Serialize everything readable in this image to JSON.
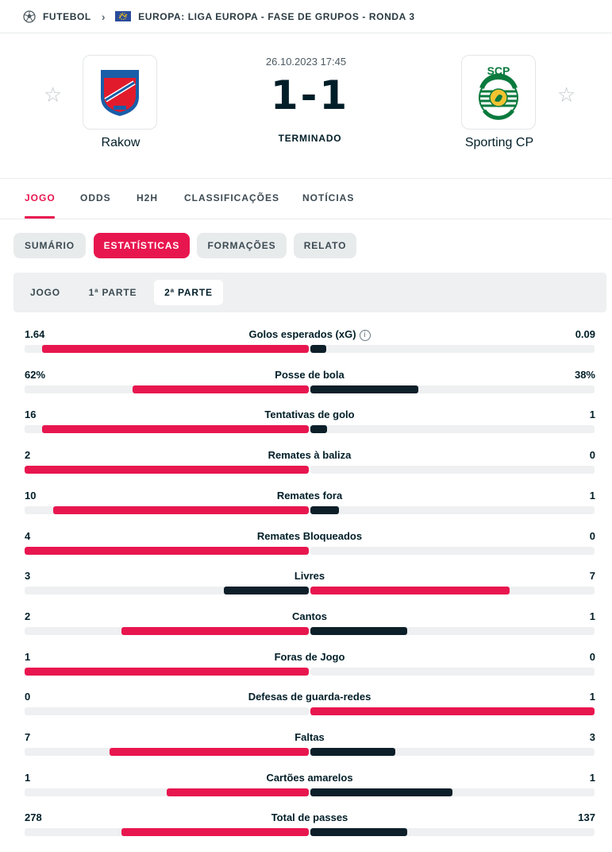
{
  "breadcrumb": {
    "sport": "FUTEBOL",
    "competition": "EUROPA: LIGA EUROPA - FASE DE GRUPOS - RONDA 3",
    "icons": [
      "soccer-ball-icon",
      "chevron-right-icon",
      "europe-flag-icon"
    ]
  },
  "match": {
    "datetime": "26.10.2023 17:45",
    "score": "1-1",
    "status": "TERMINADO",
    "home": {
      "name": "Rakow",
      "crest_text": "RKS RAKÓW",
      "crest_sub": "CZĘSTOCHOWA",
      "crest_year": "1921",
      "crest_colors": [
        "#1a5ea8",
        "#e21b2c"
      ]
    },
    "away": {
      "name": "Sporting CP",
      "crest_text": "SCP",
      "crest_sub": "SPORTING",
      "crest_sub2": "PORTUGAL",
      "crest_color": "#0a7a3d"
    }
  },
  "main_tabs": [
    "JOGO",
    "ODDS",
    "H2H",
    "CLASSIFICAÇÕES",
    "NOTÍCIAS"
  ],
  "sub_tabs": [
    "SUMÁRIO",
    "ESTATÍSTICAS",
    "FORMAÇÕES",
    "RELATO"
  ],
  "period_tabs": [
    "JOGO",
    "1ª PARTE",
    "2ª PARTE"
  ],
  "colors": {
    "accent": "#e8164f",
    "dark_bar": "#0d1f29",
    "track": "#eef0f1"
  },
  "stats": [
    {
      "label": "Golos esperados (xG)",
      "home": "1.64",
      "away": "0.09",
      "home_share": 0.938,
      "away_share": 0.055,
      "info": true
    },
    {
      "label": "Posse de bola",
      "home": "62%",
      "away": "38%",
      "home_share": 0.62,
      "away_share": 0.38
    },
    {
      "label": "Tentativas de golo",
      "home": "16",
      "away": "1",
      "home_share": 0.938,
      "away_share": 0.06
    },
    {
      "label": "Remates à baliza",
      "home": "2",
      "away": "0",
      "home_share": 1.0,
      "away_share": 0.0
    },
    {
      "label": "Remates fora",
      "home": "10",
      "away": "1",
      "home_share": 0.9,
      "away_share": 0.1
    },
    {
      "label": "Remates Bloqueados",
      "home": "4",
      "away": "0",
      "home_share": 1.0,
      "away_share": 0.0
    },
    {
      "label": "Livres",
      "home": "3",
      "away": "7",
      "home_share": 0.3,
      "away_share": 0.7
    },
    {
      "label": "Cantos",
      "home": "2",
      "away": "1",
      "home_share": 0.66,
      "away_share": 0.34
    },
    {
      "label": "Foras de Jogo",
      "home": "1",
      "away": "0",
      "home_share": 1.0,
      "away_share": 0.0
    },
    {
      "label": "Defesas de guarda-redes",
      "home": "0",
      "away": "1",
      "home_share": 0.0,
      "away_share": 1.0
    },
    {
      "label": "Faltas",
      "home": "7",
      "away": "3",
      "home_share": 0.7,
      "away_share": 0.3
    },
    {
      "label": "Cartões amarelos",
      "home": "1",
      "away": "1",
      "home_share": 0.5,
      "away_share": 0.5
    },
    {
      "label": "Total de passes",
      "home": "278",
      "away": "137",
      "home_share": 0.66,
      "away_share": 0.34
    }
  ]
}
